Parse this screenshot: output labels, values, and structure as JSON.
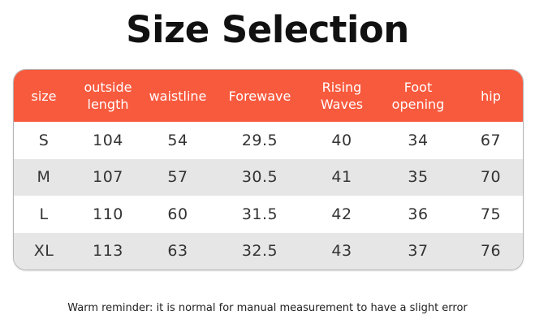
{
  "title": "Size Selection",
  "table": {
    "headers": [
      "size",
      "outside\nlength",
      "waistline",
      "Forewave",
      "Rising\nWaves",
      "Foot\nopening",
      "hip"
    ],
    "rows": [
      [
        "S",
        "104",
        "54",
        "29.5",
        "40",
        "34",
        "67"
      ],
      [
        "M",
        "107",
        "57",
        "30.5",
        "41",
        "35",
        "70"
      ],
      [
        "L",
        "110",
        "60",
        "31.5",
        "42",
        "36",
        "75"
      ],
      [
        "XL",
        "113",
        "63",
        "32.5",
        "43",
        "37",
        "76"
      ]
    ]
  },
  "reminder": "Warm reminder: it is normal for manual measurement to have a slight error",
  "colors": {
    "header_bg": "#f85a3e",
    "alt_row_bg": "#e6e6e6"
  }
}
